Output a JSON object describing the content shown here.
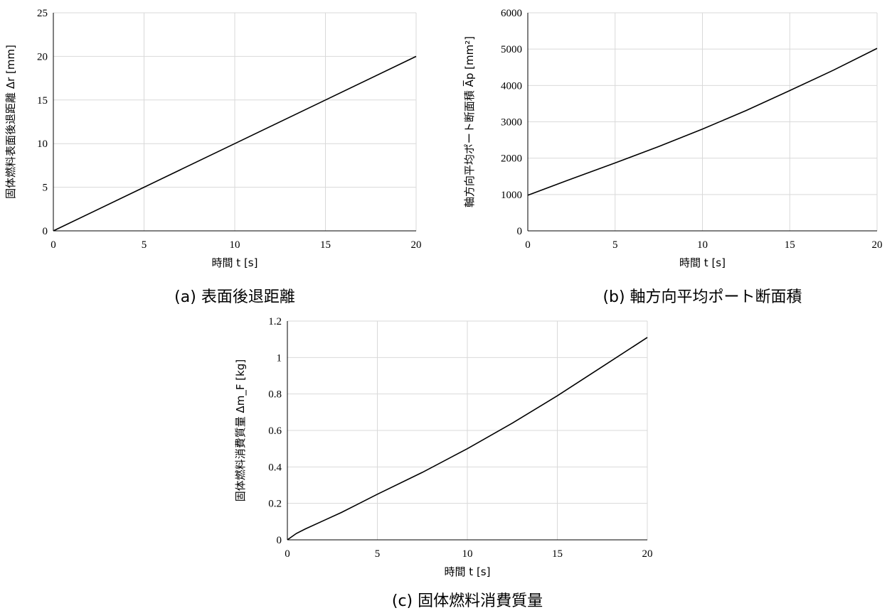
{
  "chart_data": [
    {
      "type": "line",
      "caption": "(a) 表面後退距離",
      "xlabel": "時間 t [s]",
      "ylabel": "固体燃料表面後退距離 Δr [mm]",
      "xlim": [
        0,
        20
      ],
      "ylim": [
        0,
        25
      ],
      "xticks": [
        0,
        5,
        10,
        15,
        20
      ],
      "yticks": [
        0,
        5,
        10,
        15,
        20,
        25
      ],
      "grid": true,
      "series": [
        {
          "x": [
            0,
            5,
            10,
            15,
            20
          ],
          "y": [
            0,
            5,
            10,
            15,
            20
          ]
        }
      ]
    },
    {
      "type": "line",
      "caption": "(b) 軸方向平均ポート断面積",
      "xlabel": "時間 t [s]",
      "ylabel": "軸方向平均ポート断面積 A̅p [mm²]",
      "xlim": [
        0,
        20
      ],
      "ylim": [
        0,
        6000
      ],
      "xticks": [
        0,
        5,
        10,
        15,
        20
      ],
      "yticks": [
        0,
        1000,
        2000,
        3000,
        4000,
        5000,
        6000
      ],
      "grid": true,
      "series": [
        {
          "x": [
            0,
            2.5,
            5,
            7.5,
            10,
            12.5,
            15,
            17.5,
            20
          ],
          "y": [
            980,
            1430,
            1870,
            2320,
            2800,
            3310,
            3860,
            4420,
            5020
          ]
        }
      ]
    },
    {
      "type": "line",
      "caption": "(c) 固体燃料消費質量",
      "xlabel": "時間 t [s]",
      "ylabel": "固体燃料消費質量 Δm_F [kg]",
      "xlim": [
        0,
        20
      ],
      "ylim": [
        0,
        1.2
      ],
      "xticks": [
        0,
        5,
        10,
        15,
        20
      ],
      "yticks": [
        0,
        0.2,
        0.4,
        0.6,
        0.8,
        1,
        1.2
      ],
      "grid": true,
      "series": [
        {
          "x": [
            0,
            0.5,
            1,
            2,
            3,
            4,
            5,
            7.5,
            10,
            12.5,
            15,
            17.5,
            20
          ],
          "y": [
            0,
            0.035,
            0.06,
            0.105,
            0.15,
            0.2,
            0.25,
            0.37,
            0.5,
            0.64,
            0.79,
            0.95,
            1.11
          ]
        }
      ]
    }
  ]
}
